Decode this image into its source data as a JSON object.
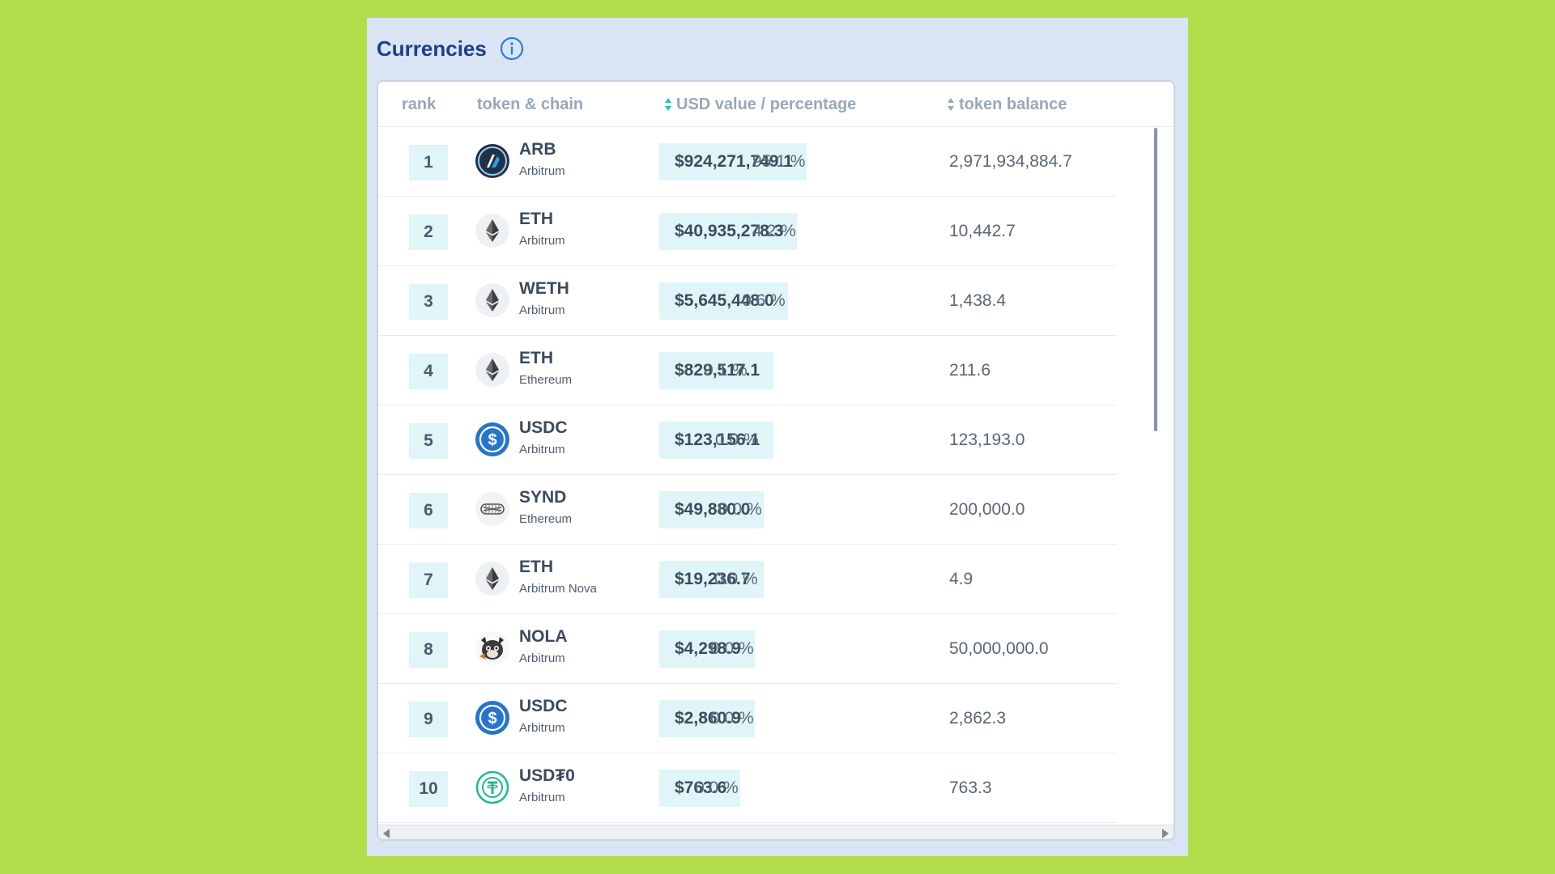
{
  "panel": {
    "title": "Currencies",
    "info_icon": "info-circle-icon"
  },
  "table": {
    "headers": {
      "rank": "rank",
      "token": "token & chain",
      "usd": "USD value / percentage",
      "balance": "token balance"
    },
    "rows": [
      {
        "rank": "1",
        "symbol": "ARB",
        "chain": "Arbitrum",
        "usd": "$924,271,749.1",
        "pct": "95.1 %",
        "balance": "2,971,934,884.7",
        "icon": "arb-icon"
      },
      {
        "rank": "2",
        "symbol": "ETH",
        "chain": "Arbitrum",
        "usd": "$40,935,278.3",
        "pct": "4.2 %",
        "balance": "10,442.7",
        "icon": "eth-icon"
      },
      {
        "rank": "3",
        "symbol": "WETH",
        "chain": "Arbitrum",
        "usd": "$5,645,448.0",
        "pct": "0.6 %",
        "balance": "1,438.4",
        "icon": "eth-icon"
      },
      {
        "rank": "4",
        "symbol": "ETH",
        "chain": "Ethereum",
        "usd": "$829,517.1",
        "pct": "0.1 %",
        "balance": "211.6",
        "icon": "eth-icon"
      },
      {
        "rank": "5",
        "symbol": "USDC",
        "chain": "Arbitrum",
        "usd": "$123,156.1",
        "pct": "0.0 %",
        "balance": "123,193.0",
        "icon": "usdc-icon"
      },
      {
        "rank": "6",
        "symbol": "SYND",
        "chain": "Ethereum",
        "usd": "$49,880.0",
        "pct": "0.0 %",
        "balance": "200,000.0",
        "icon": "synd-icon"
      },
      {
        "rank": "7",
        "symbol": "ETH",
        "chain": "Arbitrum Nova",
        "usd": "$19,236.7",
        "pct": "0.0 %",
        "balance": "4.9",
        "icon": "eth-icon"
      },
      {
        "rank": "8",
        "symbol": "NOLA",
        "chain": "Arbitrum",
        "usd": "$4,298.9",
        "pct": "0.0 %",
        "balance": "50,000,000.0",
        "icon": "nola-icon"
      },
      {
        "rank": "9",
        "symbol": "USDC",
        "chain": "Arbitrum",
        "usd": "$2,860.9",
        "pct": "0.0 %",
        "balance": "2,862.3",
        "icon": "usdc-icon"
      },
      {
        "rank": "10",
        "symbol": "USD₮0",
        "chain": "Arbitrum",
        "usd": "$763.6",
        "pct": "0.0 %",
        "balance": "763.3",
        "icon": "usdt0-icon"
      }
    ]
  },
  "colors": {
    "background": "#b3dd4a",
    "panel": "#d9e5f4",
    "title": "#1c3e8c",
    "pill": "#dff5f8",
    "header_text": "#97a8b8",
    "sort_accent": "#1fc7a8"
  }
}
